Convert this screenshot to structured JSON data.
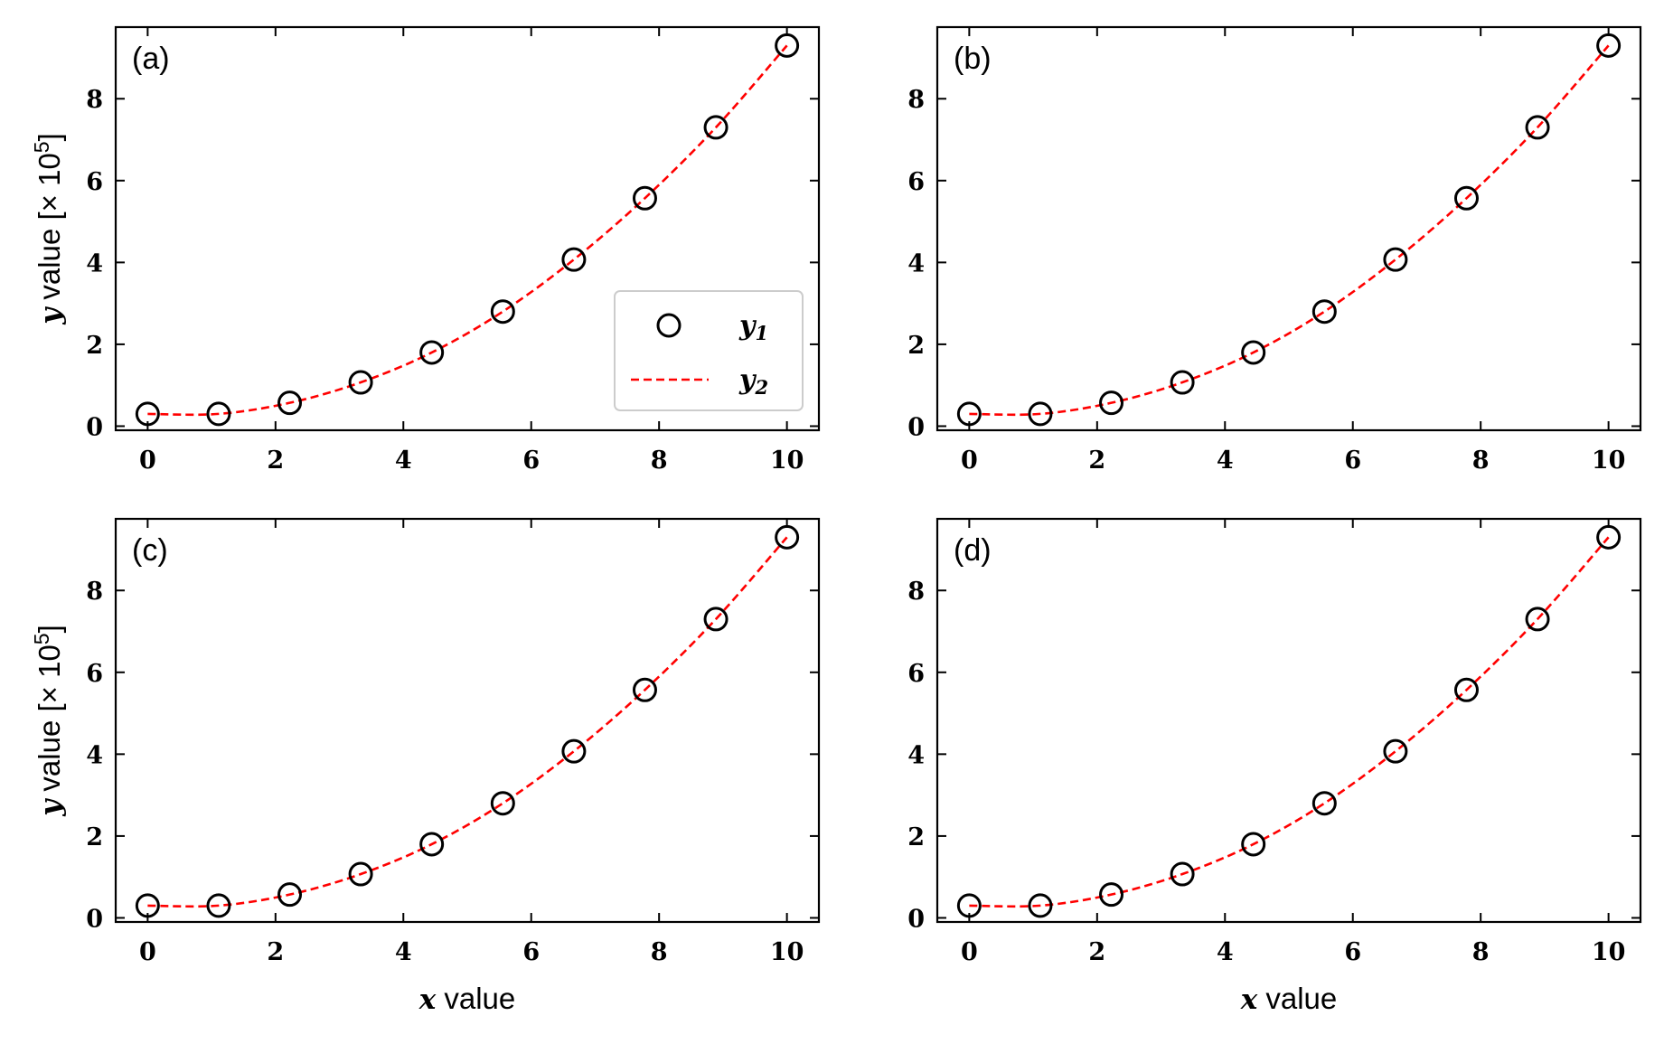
{
  "figure": {
    "y_label_parts": {
      "var": "y",
      "text": " value [× 10",
      "exp": "5",
      "close": "]"
    },
    "x_label_parts": {
      "var": "x",
      "text": " value"
    },
    "colors": {
      "markers": "#000000",
      "line": "#ff0000"
    }
  },
  "legend": {
    "entries": [
      {
        "var": "y",
        "sub": "1",
        "style": "marker"
      },
      {
        "var": "y",
        "sub": "2",
        "style": "dashed-line"
      }
    ],
    "placement": "lower-right of panel (a)"
  },
  "chart_data": [
    {
      "type": "line",
      "panel_label": "(a)",
      "series": [
        {
          "name": "y1",
          "style": "markers",
          "x": [
            0,
            1.111,
            2.222,
            3.333,
            4.444,
            5.556,
            6.667,
            7.778,
            8.889,
            10
          ],
          "y": [
            0.3,
            0.3,
            0.57,
            1.07,
            1.8,
            2.8,
            4.07,
            5.57,
            7.3,
            9.3
          ]
        },
        {
          "name": "y2",
          "style": "dashed",
          "x": [
            0,
            1.111,
            2.222,
            3.333,
            4.444,
            5.556,
            6.667,
            7.778,
            8.889,
            10
          ],
          "y": [
            0.3,
            0.3,
            0.57,
            1.07,
            1.8,
            2.8,
            4.07,
            5.57,
            7.3,
            9.3
          ]
        }
      ],
      "xticks": [
        0,
        2,
        4,
        6,
        8,
        10
      ],
      "yticks": [
        0,
        2,
        4,
        6,
        8
      ],
      "xlim": [
        -0.5,
        10.5
      ],
      "ylim": [
        -0.1,
        9.75
      ],
      "show_xlabel": false,
      "show_ylabel": true,
      "show_legend": true
    },
    {
      "type": "line",
      "panel_label": "(b)",
      "series": [
        {
          "name": "y1",
          "style": "markers",
          "x": [
            0,
            1.111,
            2.222,
            3.333,
            4.444,
            5.556,
            6.667,
            7.778,
            8.889,
            10
          ],
          "y": [
            0.3,
            0.3,
            0.57,
            1.07,
            1.8,
            2.8,
            4.07,
            5.57,
            7.3,
            9.3
          ]
        },
        {
          "name": "y2",
          "style": "dashed",
          "x": [
            0,
            1.111,
            2.222,
            3.333,
            4.444,
            5.556,
            6.667,
            7.778,
            8.889,
            10
          ],
          "y": [
            0.3,
            0.3,
            0.57,
            1.07,
            1.8,
            2.8,
            4.07,
            5.57,
            7.3,
            9.3
          ]
        }
      ],
      "xticks": [
        0,
        2,
        4,
        6,
        8,
        10
      ],
      "yticks": [
        0,
        2,
        4,
        6,
        8
      ],
      "xlim": [
        -0.5,
        10.5
      ],
      "ylim": [
        -0.1,
        9.75
      ],
      "show_xlabel": false,
      "show_ylabel": false,
      "show_legend": false
    },
    {
      "type": "line",
      "panel_label": "(c)",
      "series": [
        {
          "name": "y1",
          "style": "markers",
          "x": [
            0,
            1.111,
            2.222,
            3.333,
            4.444,
            5.556,
            6.667,
            7.778,
            8.889,
            10
          ],
          "y": [
            0.3,
            0.3,
            0.57,
            1.07,
            1.8,
            2.8,
            4.07,
            5.57,
            7.3,
            9.3
          ]
        },
        {
          "name": "y2",
          "style": "dashed",
          "x": [
            0,
            1.111,
            2.222,
            3.333,
            4.444,
            5.556,
            6.667,
            7.778,
            8.889,
            10
          ],
          "y": [
            0.3,
            0.3,
            0.57,
            1.07,
            1.8,
            2.8,
            4.07,
            5.57,
            7.3,
            9.3
          ]
        }
      ],
      "xticks": [
        0,
        2,
        4,
        6,
        8,
        10
      ],
      "yticks": [
        0,
        2,
        4,
        6,
        8
      ],
      "xlim": [
        -0.5,
        10.5
      ],
      "ylim": [
        -0.1,
        9.75
      ],
      "show_xlabel": true,
      "show_ylabel": true,
      "show_legend": false
    },
    {
      "type": "line",
      "panel_label": "(d)",
      "series": [
        {
          "name": "y1",
          "style": "markers",
          "x": [
            0,
            1.111,
            2.222,
            3.333,
            4.444,
            5.556,
            6.667,
            7.778,
            8.889,
            10
          ],
          "y": [
            0.3,
            0.3,
            0.57,
            1.07,
            1.8,
            2.8,
            4.07,
            5.57,
            7.3,
            9.3
          ]
        },
        {
          "name": "y2",
          "style": "dashed",
          "x": [
            0,
            1.111,
            2.222,
            3.333,
            4.444,
            5.556,
            6.667,
            7.778,
            8.889,
            10
          ],
          "y": [
            0.3,
            0.3,
            0.57,
            1.07,
            1.8,
            2.8,
            4.07,
            5.57,
            7.3,
            9.3
          ]
        }
      ],
      "xticks": [
        0,
        2,
        4,
        6,
        8,
        10
      ],
      "yticks": [
        0,
        2,
        4,
        6,
        8
      ],
      "xlim": [
        -0.5,
        10.5
      ],
      "ylim": [
        -0.1,
        9.75
      ],
      "show_xlabel": true,
      "show_ylabel": false,
      "show_legend": false
    }
  ]
}
